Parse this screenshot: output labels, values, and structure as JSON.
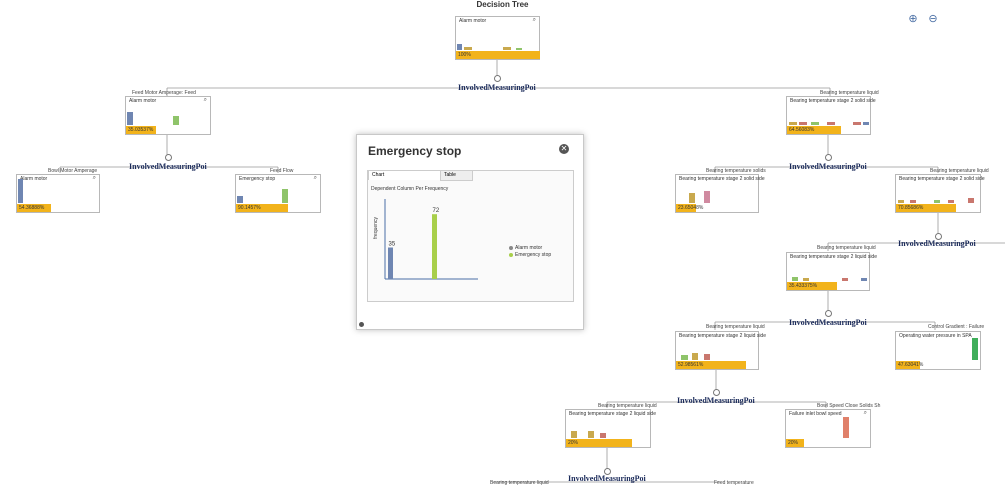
{
  "title": "Decision Tree",
  "zoom": {
    "in_icon": "zoom-in-icon",
    "out_icon": "zoom-out-icon"
  },
  "nodes": {
    "root": {
      "name": "Alarm motor",
      "pct": "100%"
    },
    "bowl_parent": {
      "name": "Alarm motor",
      "pct": "35.03537%"
    },
    "bowl_leaf": {
      "name": "Alarm motor",
      "pct": "54.36888%"
    },
    "feed_leaf": {
      "name": "Emergency stop",
      "pct": "90.1457%"
    },
    "right_parent": {
      "name": "Bearing temperature stage 2 solid side",
      "pct": "64.56083%"
    },
    "r_left": {
      "name": "Bearing temperature stage 2 solid side",
      "pct": "23.65048%"
    },
    "r_right": {
      "name": "Bearing temperature stage 2 solid side",
      "pct": "70.85686%"
    },
    "mid": {
      "name": "Bearing temperature stage 2 liquid side",
      "pct": "35.433375%"
    },
    "lower": {
      "name": "Bearing temperature stage 2 liquid side",
      "pct": "52.98561%"
    },
    "operating": {
      "name": "Operating water pressure in SPA",
      "pct": "47.63041%"
    },
    "bottom": {
      "name": "Bearing temperature stage 2 liquid side",
      "pct": "20%"
    },
    "failure": {
      "name": "Failure inlet bowl speed",
      "pct": "20%"
    }
  },
  "labels": {
    "feed_motor": "Feed Motor Amperage: Feed",
    "bearing_liquid_top": "Bearing temperature liquid",
    "bowl_motor": "Bowl Motor Amperage",
    "feed_flow": "Feed Flow",
    "bearing_solids": "Bearing temperature solids",
    "bearing_liquid_r": "Bearing temperature liquid",
    "bearing_liquid_mid": "Bearing temperature liquid",
    "bearing_liquid_low": "Bearing temperature liquid",
    "control_gradient": "Control Gradient : Failure",
    "bearing_liquid_bot": "Bearing temperature liquid",
    "bowl_speed": "Bowl Speed Close Solids Sh",
    "bearing_liquid_end": "Bearing temperature liquid",
    "feed_temperature": "Feed temperature"
  },
  "involved": "InvolvedMeasuringPoi",
  "popup": {
    "title": "Emergency stop",
    "tabs": [
      "Chart",
      "Table"
    ],
    "chart_title": "Dependent Column Per Frequency",
    "ylabel": "frequency",
    "close_icon": "close-icon",
    "chart_data": {
      "type": "bar",
      "series": [
        {
          "name": "Alarm motor",
          "value": 35,
          "color": "#6f86b2"
        },
        {
          "name": "Emergency stop",
          "value": 72,
          "color": "#a8cf4a"
        }
      ]
    }
  },
  "colors": {
    "accent": "#f2b31b",
    "blue": "#6f86b2",
    "green": "#8fc46a",
    "red": "#c9776e",
    "pink": "#d08aa0"
  }
}
